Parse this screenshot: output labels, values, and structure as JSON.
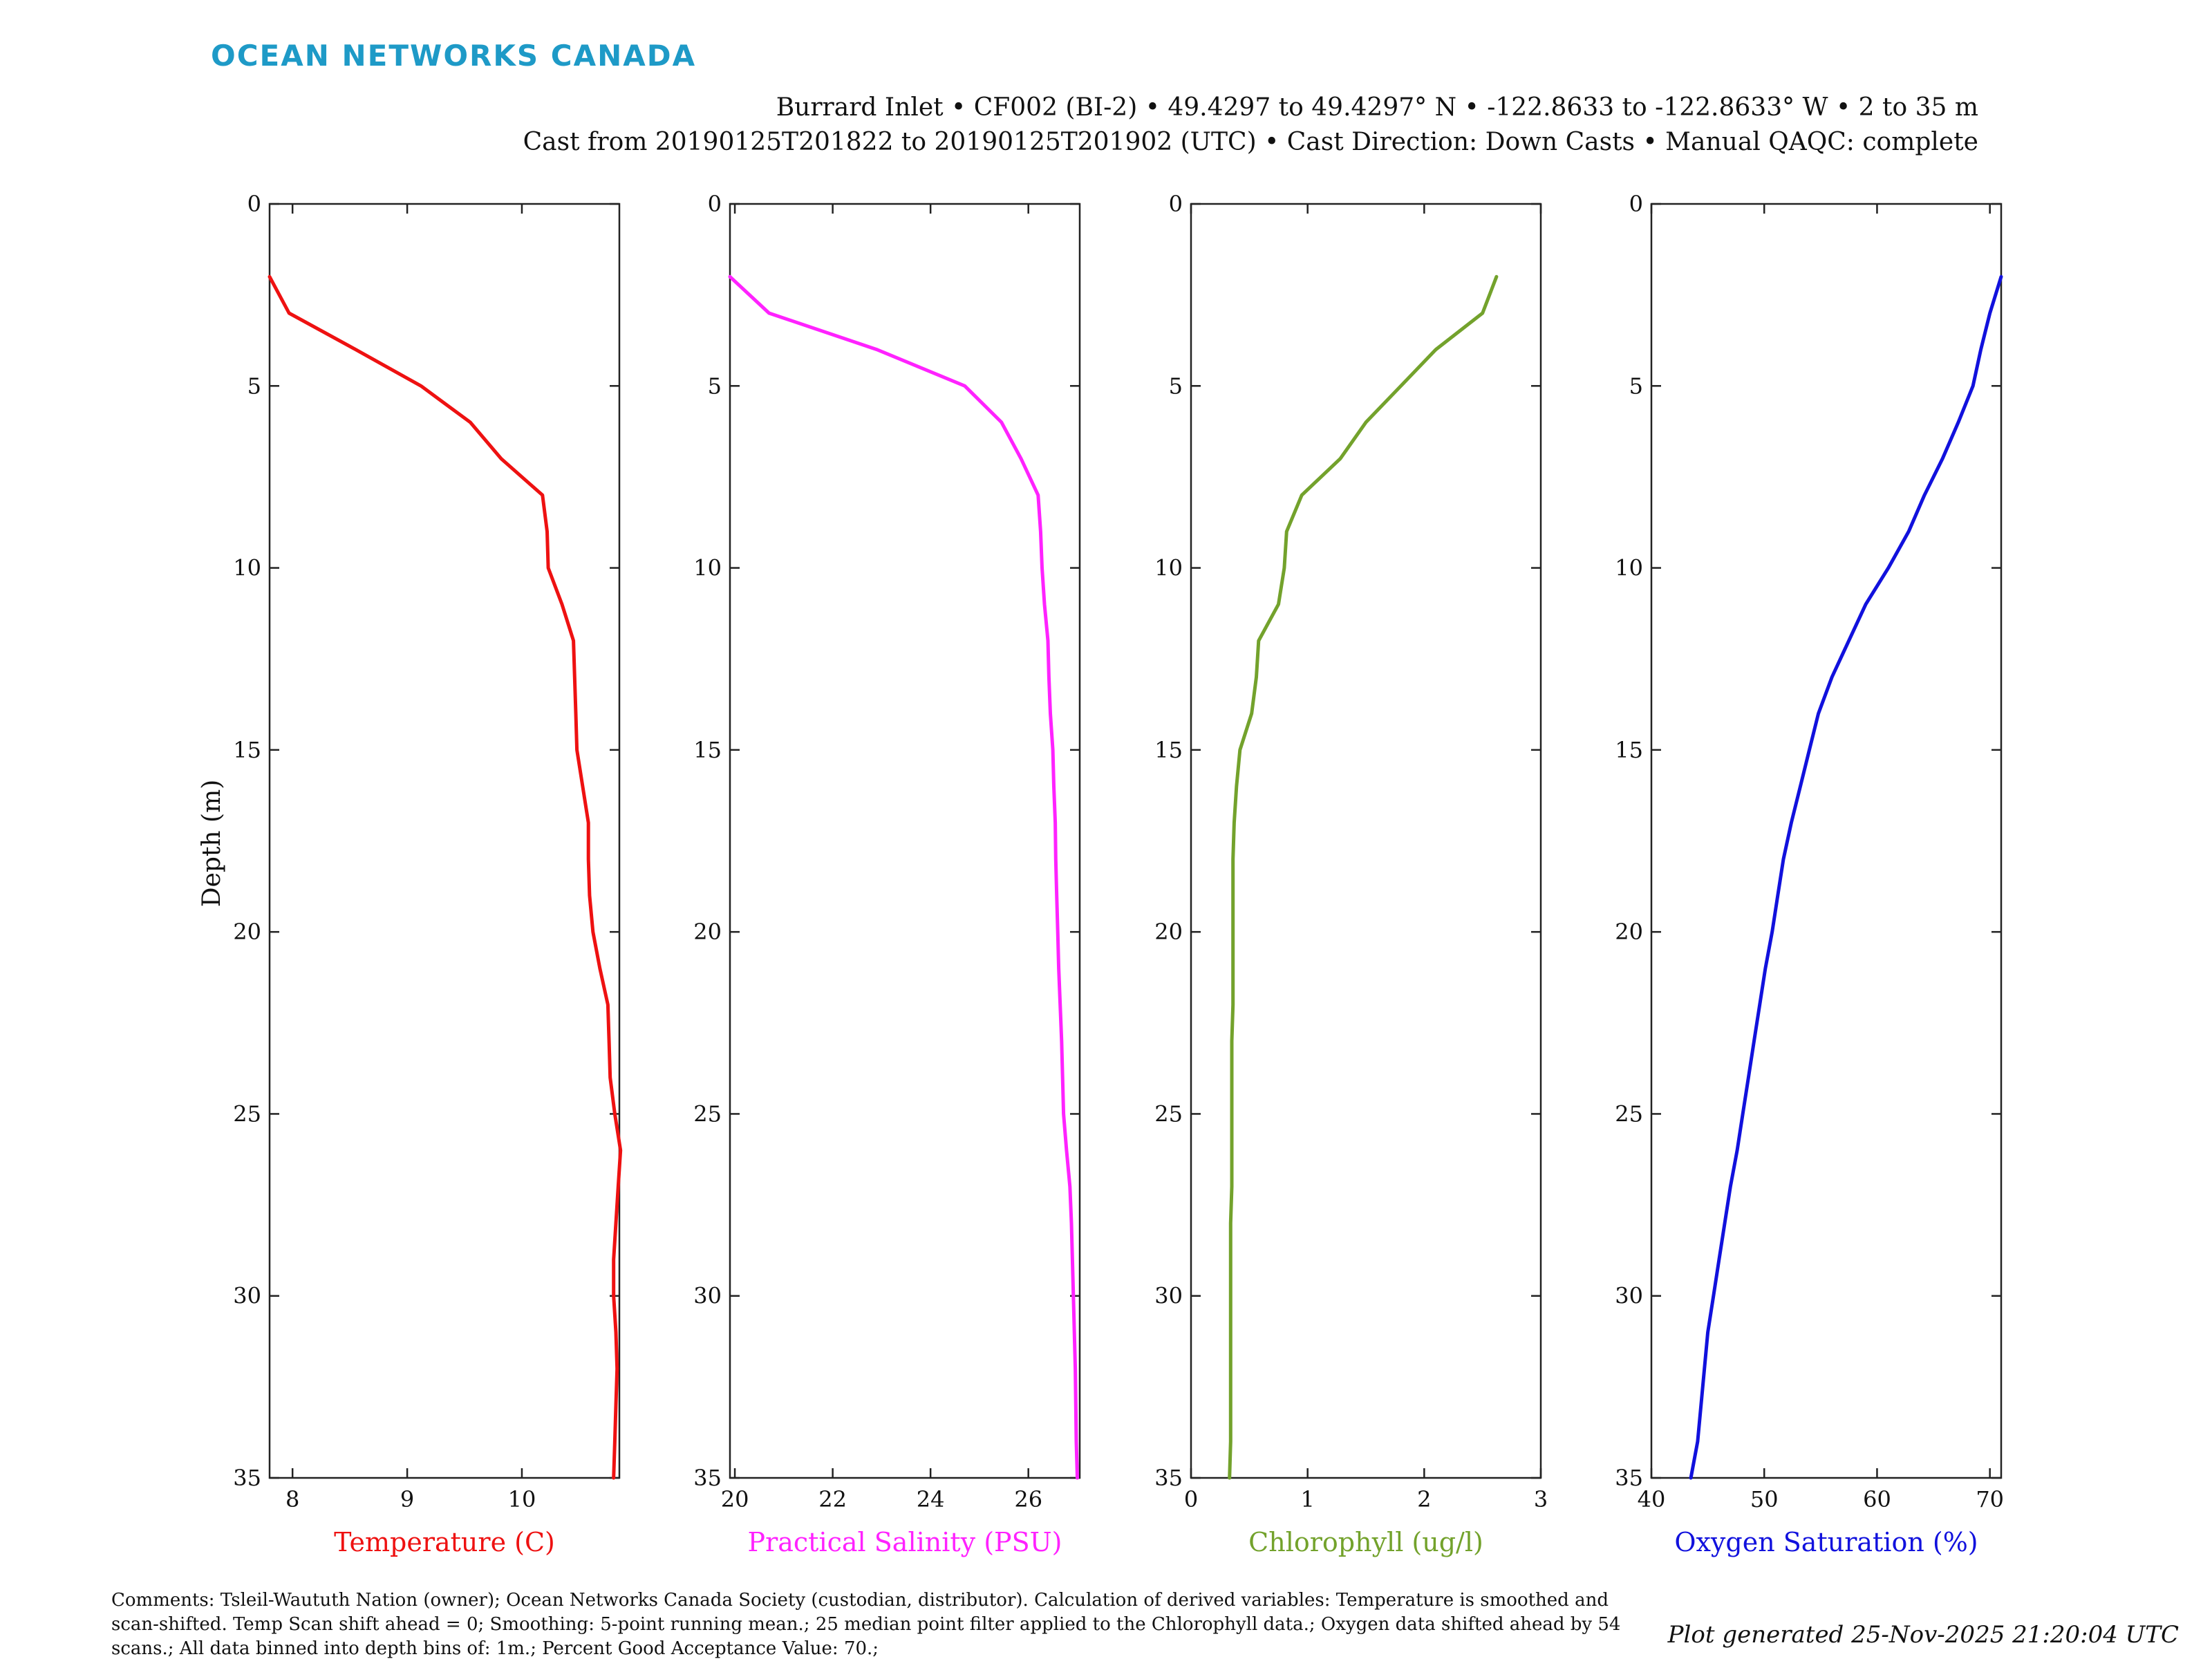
{
  "brand": "OCEAN NETWORKS CANADA",
  "header": {
    "line1": "Burrard Inlet • CF002 (BI-2) • 49.4297 to 49.4297° N • -122.8633 to -122.8633° W • 2 to 35 m",
    "line2": "Cast from 20190125T201822 to 20190125T201902 (UTC) • Cast Direction: Down Casts • Manual QAQC: complete"
  },
  "footer": {
    "comments": [
      "Comments: Tsleil-Waututh Nation (owner); Ocean Networks Canada Society (custodian, distributor). Calculation of derived variables: Temperature is smoothed and",
      "scan-shifted. Temp Scan shift ahead = 0; Smoothing: 5-point running mean.; 25 median point filter applied to the Chlorophyll data.; Oxygen data shifted ahead by 54",
      "scans.; All data binned into depth bins of: 1m.; Percent Good Acceptance Value: 70.;"
    ],
    "generated": "Plot generated 25-Nov-2025 21:20:04 UTC"
  },
  "chart_data": [
    {
      "type": "line",
      "xlabel": "Temperature (C)",
      "ylabel": "Depth (m)",
      "color": "#ee1111",
      "xlim": [
        7.8,
        10.85
      ],
      "ylim": [
        0,
        35
      ],
      "xticks": [
        8,
        9,
        10
      ],
      "yticks": [
        0,
        5,
        10,
        15,
        20,
        25,
        30,
        35
      ],
      "y_reversed": true,
      "depth": [
        2,
        3,
        4,
        5,
        6,
        7,
        8,
        9,
        10,
        11,
        12,
        13,
        14,
        15,
        16,
        17,
        18,
        19,
        20,
        21,
        22,
        23,
        24,
        25,
        26,
        27,
        28,
        29,
        30,
        31,
        32,
        33,
        34,
        35
      ],
      "values": [
        7.8,
        7.97,
        8.55,
        9.12,
        9.55,
        9.82,
        10.18,
        10.22,
        10.23,
        10.35,
        10.45,
        10.46,
        10.47,
        10.48,
        10.53,
        10.58,
        10.58,
        10.59,
        10.62,
        10.68,
        10.75,
        10.76,
        10.77,
        10.81,
        10.86,
        10.84,
        10.82,
        10.8,
        10.8,
        10.82,
        10.83,
        10.82,
        10.81,
        10.8
      ]
    },
    {
      "type": "line",
      "xlabel": "Practical Salinity (PSU)",
      "ylabel": "",
      "color": "#ff22ff",
      "xlim": [
        19.9,
        27.05
      ],
      "ylim": [
        0,
        35
      ],
      "xticks": [
        20,
        22,
        24,
        26
      ],
      "yticks": [
        0,
        5,
        10,
        15,
        20,
        25,
        30,
        35
      ],
      "y_reversed": true,
      "depth": [
        2,
        3,
        4,
        5,
        6,
        7,
        8,
        9,
        10,
        11,
        12,
        13,
        14,
        15,
        16,
        17,
        18,
        19,
        20,
        21,
        22,
        23,
        24,
        25,
        26,
        27,
        28,
        29,
        30,
        31,
        32,
        33,
        34,
        35
      ],
      "values": [
        19.9,
        20.7,
        22.9,
        24.7,
        25.45,
        25.85,
        26.2,
        26.25,
        26.28,
        26.33,
        26.4,
        26.42,
        26.45,
        26.5,
        26.52,
        26.55,
        26.56,
        26.58,
        26.6,
        26.62,
        26.65,
        26.68,
        26.7,
        26.72,
        26.78,
        26.85,
        26.88,
        26.9,
        26.92,
        26.94,
        26.96,
        26.97,
        26.98,
        27.0
      ]
    },
    {
      "type": "line",
      "xlabel": "Chlorophyll (ug/l)",
      "ylabel": "",
      "color": "#73a22c",
      "xlim": [
        0,
        3
      ],
      "ylim": [
        0,
        35
      ],
      "xticks": [
        0,
        1,
        2,
        3
      ],
      "yticks": [
        0,
        5,
        10,
        15,
        20,
        25,
        30,
        35
      ],
      "y_reversed": true,
      "depth": [
        2,
        3,
        4,
        5,
        6,
        7,
        8,
        9,
        10,
        11,
        12,
        13,
        14,
        15,
        16,
        17,
        18,
        19,
        20,
        21,
        22,
        23,
        24,
        25,
        26,
        27,
        28,
        29,
        30,
        31,
        32,
        33,
        34,
        35
      ],
      "values": [
        2.62,
        2.5,
        2.1,
        1.8,
        1.5,
        1.28,
        0.95,
        0.82,
        0.8,
        0.75,
        0.58,
        0.56,
        0.52,
        0.42,
        0.39,
        0.37,
        0.36,
        0.36,
        0.36,
        0.36,
        0.36,
        0.35,
        0.35,
        0.35,
        0.35,
        0.35,
        0.34,
        0.34,
        0.34,
        0.34,
        0.34,
        0.34,
        0.34,
        0.33
      ]
    },
    {
      "type": "line",
      "xlabel": "Oxygen Saturation (%)",
      "ylabel": "",
      "color": "#1111dd",
      "xlim": [
        40,
        71
      ],
      "ylim": [
        0,
        35
      ],
      "xticks": [
        40,
        50,
        60,
        70
      ],
      "yticks": [
        0,
        5,
        10,
        15,
        20,
        25,
        30,
        35
      ],
      "y_reversed": true,
      "depth": [
        2,
        3,
        4,
        5,
        6,
        7,
        8,
        9,
        10,
        11,
        12,
        13,
        14,
        15,
        16,
        17,
        18,
        19,
        20,
        21,
        22,
        23,
        24,
        25,
        26,
        27,
        28,
        29,
        30,
        31,
        32,
        33,
        34,
        35
      ],
      "values": [
        71,
        70,
        69.2,
        68.5,
        67.2,
        65.8,
        64.2,
        62.8,
        61,
        59,
        57.5,
        56,
        54.8,
        54,
        53.2,
        52.4,
        51.7,
        51.2,
        50.7,
        50.1,
        49.6,
        49.1,
        48.6,
        48.1,
        47.6,
        47,
        46.5,
        46,
        45.5,
        45,
        44.7,
        44.4,
        44.1,
        43.5
      ]
    }
  ]
}
